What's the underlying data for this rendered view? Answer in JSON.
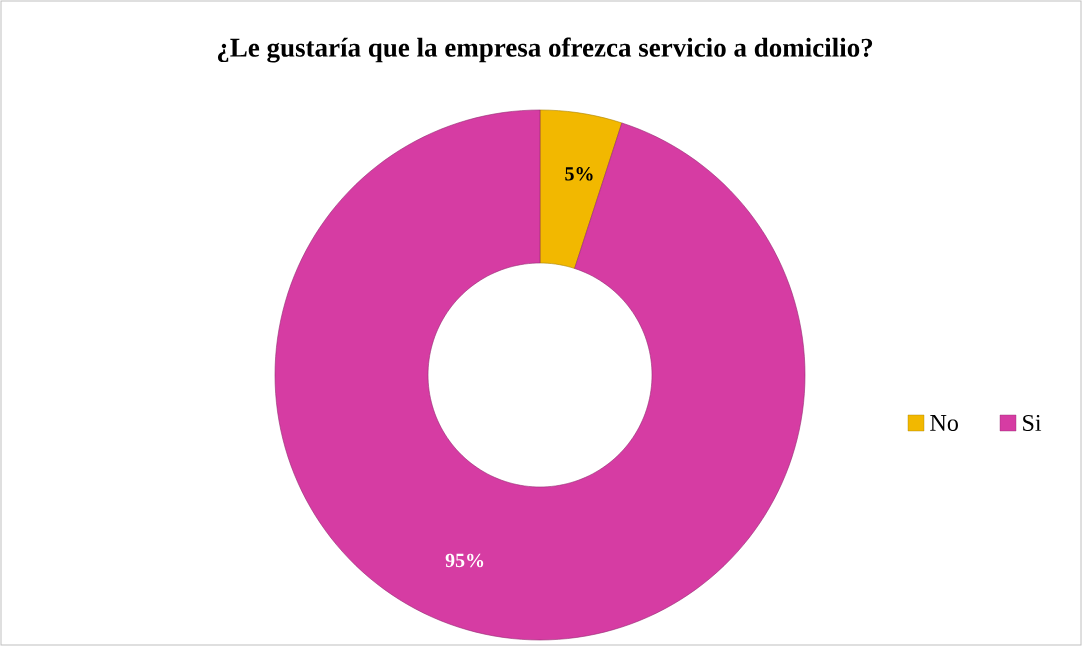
{
  "chart_data": {
    "type": "donut",
    "title": "¿Le gustaría que la empresa ofrezca servicio a domicilio?",
    "categories": [
      "No",
      "Si"
    ],
    "values": [
      5,
      95
    ],
    "colors": [
      "#f2b800",
      "#d63ca3"
    ],
    "value_labels": [
      "5%",
      "95%"
    ],
    "legend": "right"
  }
}
